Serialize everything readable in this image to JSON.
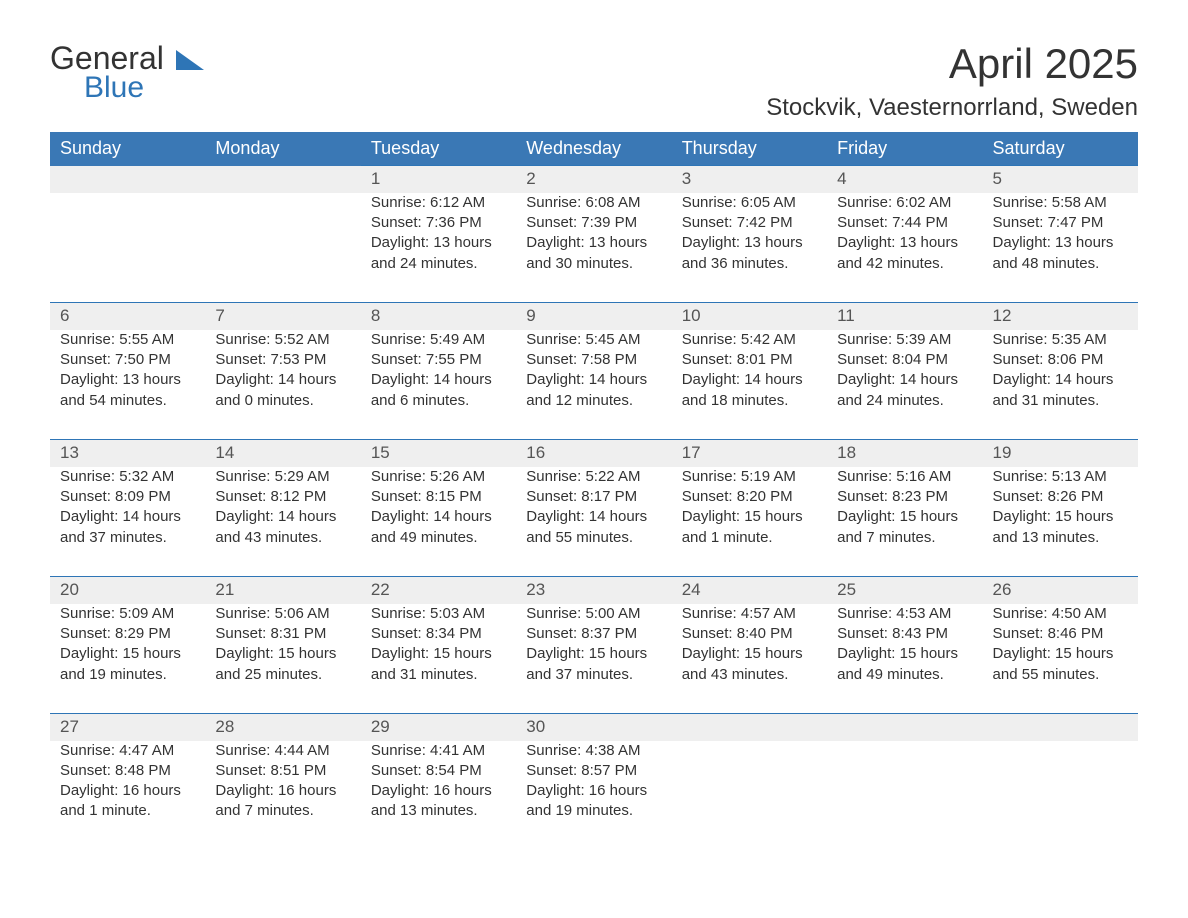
{
  "logo": {
    "text_general": "General",
    "text_blue": "Blue"
  },
  "header": {
    "month_title": "April 2025",
    "location": "Stockvik, Vaesternorrland, Sweden"
  },
  "colors": {
    "header_bg": "#3a78b5",
    "header_text": "#ffffff",
    "daynum_bg": "#efefef",
    "row_border": "#2e75b6",
    "body_text": "#333333",
    "logo_blue": "#2e75b6"
  },
  "weekdays": [
    "Sunday",
    "Monday",
    "Tuesday",
    "Wednesday",
    "Thursday",
    "Friday",
    "Saturday"
  ],
  "weeks": [
    {
      "nums": [
        "",
        "",
        "1",
        "2",
        "3",
        "4",
        "5"
      ],
      "cells": [
        {},
        {},
        {
          "sunrise": "Sunrise: 6:12 AM",
          "sunset": "Sunset: 7:36 PM",
          "day_a": "Daylight: 13 hours",
          "day_b": "and 24 minutes."
        },
        {
          "sunrise": "Sunrise: 6:08 AM",
          "sunset": "Sunset: 7:39 PM",
          "day_a": "Daylight: 13 hours",
          "day_b": "and 30 minutes."
        },
        {
          "sunrise": "Sunrise: 6:05 AM",
          "sunset": "Sunset: 7:42 PM",
          "day_a": "Daylight: 13 hours",
          "day_b": "and 36 minutes."
        },
        {
          "sunrise": "Sunrise: 6:02 AM",
          "sunset": "Sunset: 7:44 PM",
          "day_a": "Daylight: 13 hours",
          "day_b": "and 42 minutes."
        },
        {
          "sunrise": "Sunrise: 5:58 AM",
          "sunset": "Sunset: 7:47 PM",
          "day_a": "Daylight: 13 hours",
          "day_b": "and 48 minutes."
        }
      ]
    },
    {
      "nums": [
        "6",
        "7",
        "8",
        "9",
        "10",
        "11",
        "12"
      ],
      "cells": [
        {
          "sunrise": "Sunrise: 5:55 AM",
          "sunset": "Sunset: 7:50 PM",
          "day_a": "Daylight: 13 hours",
          "day_b": "and 54 minutes."
        },
        {
          "sunrise": "Sunrise: 5:52 AM",
          "sunset": "Sunset: 7:53 PM",
          "day_a": "Daylight: 14 hours",
          "day_b": "and 0 minutes."
        },
        {
          "sunrise": "Sunrise: 5:49 AM",
          "sunset": "Sunset: 7:55 PM",
          "day_a": "Daylight: 14 hours",
          "day_b": "and 6 minutes."
        },
        {
          "sunrise": "Sunrise: 5:45 AM",
          "sunset": "Sunset: 7:58 PM",
          "day_a": "Daylight: 14 hours",
          "day_b": "and 12 minutes."
        },
        {
          "sunrise": "Sunrise: 5:42 AM",
          "sunset": "Sunset: 8:01 PM",
          "day_a": "Daylight: 14 hours",
          "day_b": "and 18 minutes."
        },
        {
          "sunrise": "Sunrise: 5:39 AM",
          "sunset": "Sunset: 8:04 PM",
          "day_a": "Daylight: 14 hours",
          "day_b": "and 24 minutes."
        },
        {
          "sunrise": "Sunrise: 5:35 AM",
          "sunset": "Sunset: 8:06 PM",
          "day_a": "Daylight: 14 hours",
          "day_b": "and 31 minutes."
        }
      ]
    },
    {
      "nums": [
        "13",
        "14",
        "15",
        "16",
        "17",
        "18",
        "19"
      ],
      "cells": [
        {
          "sunrise": "Sunrise: 5:32 AM",
          "sunset": "Sunset: 8:09 PM",
          "day_a": "Daylight: 14 hours",
          "day_b": "and 37 minutes."
        },
        {
          "sunrise": "Sunrise: 5:29 AM",
          "sunset": "Sunset: 8:12 PM",
          "day_a": "Daylight: 14 hours",
          "day_b": "and 43 minutes."
        },
        {
          "sunrise": "Sunrise: 5:26 AM",
          "sunset": "Sunset: 8:15 PM",
          "day_a": "Daylight: 14 hours",
          "day_b": "and 49 minutes."
        },
        {
          "sunrise": "Sunrise: 5:22 AM",
          "sunset": "Sunset: 8:17 PM",
          "day_a": "Daylight: 14 hours",
          "day_b": "and 55 minutes."
        },
        {
          "sunrise": "Sunrise: 5:19 AM",
          "sunset": "Sunset: 8:20 PM",
          "day_a": "Daylight: 15 hours",
          "day_b": "and 1 minute."
        },
        {
          "sunrise": "Sunrise: 5:16 AM",
          "sunset": "Sunset: 8:23 PM",
          "day_a": "Daylight: 15 hours",
          "day_b": "and 7 minutes."
        },
        {
          "sunrise": "Sunrise: 5:13 AM",
          "sunset": "Sunset: 8:26 PM",
          "day_a": "Daylight: 15 hours",
          "day_b": "and 13 minutes."
        }
      ]
    },
    {
      "nums": [
        "20",
        "21",
        "22",
        "23",
        "24",
        "25",
        "26"
      ],
      "cells": [
        {
          "sunrise": "Sunrise: 5:09 AM",
          "sunset": "Sunset: 8:29 PM",
          "day_a": "Daylight: 15 hours",
          "day_b": "and 19 minutes."
        },
        {
          "sunrise": "Sunrise: 5:06 AM",
          "sunset": "Sunset: 8:31 PM",
          "day_a": "Daylight: 15 hours",
          "day_b": "and 25 minutes."
        },
        {
          "sunrise": "Sunrise: 5:03 AM",
          "sunset": "Sunset: 8:34 PM",
          "day_a": "Daylight: 15 hours",
          "day_b": "and 31 minutes."
        },
        {
          "sunrise": "Sunrise: 5:00 AM",
          "sunset": "Sunset: 8:37 PM",
          "day_a": "Daylight: 15 hours",
          "day_b": "and 37 minutes."
        },
        {
          "sunrise": "Sunrise: 4:57 AM",
          "sunset": "Sunset: 8:40 PM",
          "day_a": "Daylight: 15 hours",
          "day_b": "and 43 minutes."
        },
        {
          "sunrise": "Sunrise: 4:53 AM",
          "sunset": "Sunset: 8:43 PM",
          "day_a": "Daylight: 15 hours",
          "day_b": "and 49 minutes."
        },
        {
          "sunrise": "Sunrise: 4:50 AM",
          "sunset": "Sunset: 8:46 PM",
          "day_a": "Daylight: 15 hours",
          "day_b": "and 55 minutes."
        }
      ]
    },
    {
      "nums": [
        "27",
        "28",
        "29",
        "30",
        "",
        "",
        ""
      ],
      "cells": [
        {
          "sunrise": "Sunrise: 4:47 AM",
          "sunset": "Sunset: 8:48 PM",
          "day_a": "Daylight: 16 hours",
          "day_b": "and 1 minute."
        },
        {
          "sunrise": "Sunrise: 4:44 AM",
          "sunset": "Sunset: 8:51 PM",
          "day_a": "Daylight: 16 hours",
          "day_b": "and 7 minutes."
        },
        {
          "sunrise": "Sunrise: 4:41 AM",
          "sunset": "Sunset: 8:54 PM",
          "day_a": "Daylight: 16 hours",
          "day_b": "and 13 minutes."
        },
        {
          "sunrise": "Sunrise: 4:38 AM",
          "sunset": "Sunset: 8:57 PM",
          "day_a": "Daylight: 16 hours",
          "day_b": "and 19 minutes."
        },
        {},
        {},
        {}
      ]
    }
  ]
}
